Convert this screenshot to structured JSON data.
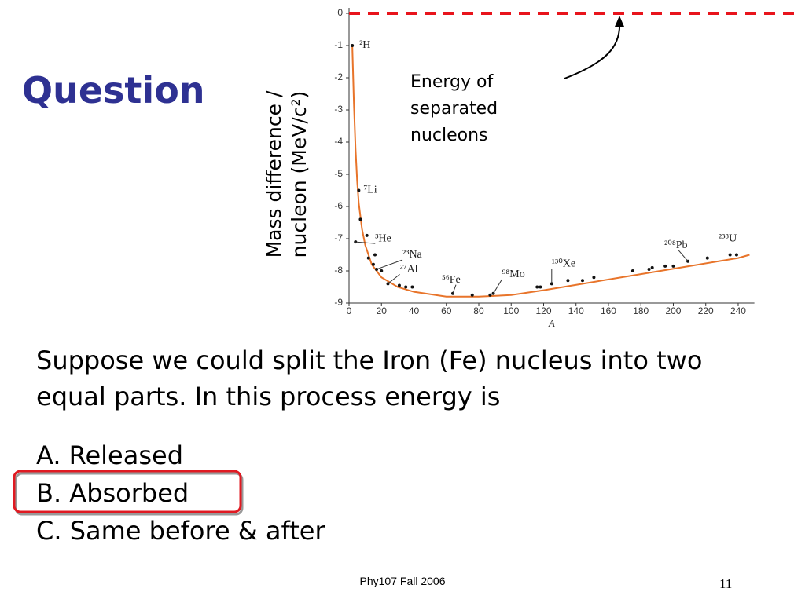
{
  "title": "Question",
  "chart_data": {
    "type": "scatter",
    "x_label": "A",
    "y_label": [
      "Mass difference /",
      "nucleon (MeV/c²)"
    ],
    "xlim": [
      0,
      250
    ],
    "xticks": [
      0,
      20,
      40,
      60,
      80,
      100,
      120,
      140,
      160,
      180,
      200,
      220,
      240
    ],
    "ylim": [
      -9,
      0
    ],
    "yticks": [
      0,
      -1,
      -2,
      -3,
      -4,
      -5,
      -6,
      -7,
      -8,
      -9
    ],
    "curve": {
      "color": "#e8742a",
      "x": [
        2,
        3,
        4,
        5,
        6,
        8,
        10,
        14,
        20,
        30,
        40,
        60,
        80,
        100,
        120,
        150,
        180,
        210,
        240,
        247
      ],
      "y": [
        -1.0,
        -2.8,
        -4.2,
        -5.2,
        -5.9,
        -6.7,
        -7.2,
        -7.8,
        -8.2,
        -8.5,
        -8.65,
        -8.8,
        -8.8,
        -8.75,
        -8.6,
        -8.35,
        -8.1,
        -7.85,
        -7.6,
        -7.5
      ]
    },
    "points": {
      "color": "#111111",
      "x": [
        2,
        6,
        7,
        11,
        4,
        12,
        16,
        15,
        17,
        20,
        24,
        31,
        35,
        39,
        64,
        76,
        87,
        89,
        116,
        118,
        125,
        135,
        144,
        151,
        175,
        185,
        187,
        195,
        200,
        209,
        221,
        235,
        239
      ],
      "y": [
        -1.0,
        -5.5,
        -6.4,
        -6.9,
        -7.1,
        -7.6,
        -7.5,
        -7.8,
        -7.95,
        -8.0,
        -8.4,
        -8.45,
        -8.5,
        -8.5,
        -8.7,
        -8.75,
        -8.75,
        -8.7,
        -8.5,
        -8.5,
        -8.4,
        -8.3,
        -8.3,
        -8.2,
        -8.0,
        -7.95,
        -7.9,
        -7.85,
        -7.85,
        -7.7,
        -7.6,
        -7.5,
        -7.5
      ],
      "labels": [
        "²H",
        "⁷Li",
        null,
        null,
        "³He",
        null,
        null,
        null,
        "²³Na",
        null,
        "²⁷Al",
        null,
        null,
        null,
        "⁵⁶Fe",
        null,
        null,
        "⁹⁸Mo",
        null,
        null,
        "¹³⁰Xe",
        null,
        null,
        null,
        null,
        null,
        null,
        null,
        null,
        "²⁰⁸Pb",
        null,
        null,
        "²³⁸U"
      ]
    },
    "reference_line": {
      "value": 0,
      "color": "#e8141c",
      "label": [
        "Energy of",
        "separated",
        "nucleons"
      ]
    }
  },
  "body": "Suppose we could split the Iron (Fe) nucleus into two equal parts. In this process energy is",
  "options": [
    "A. Released",
    "B. Absorbed",
    "C. Same before & after"
  ],
  "footer": "Phy107 Fall 2006",
  "page_number": "11"
}
